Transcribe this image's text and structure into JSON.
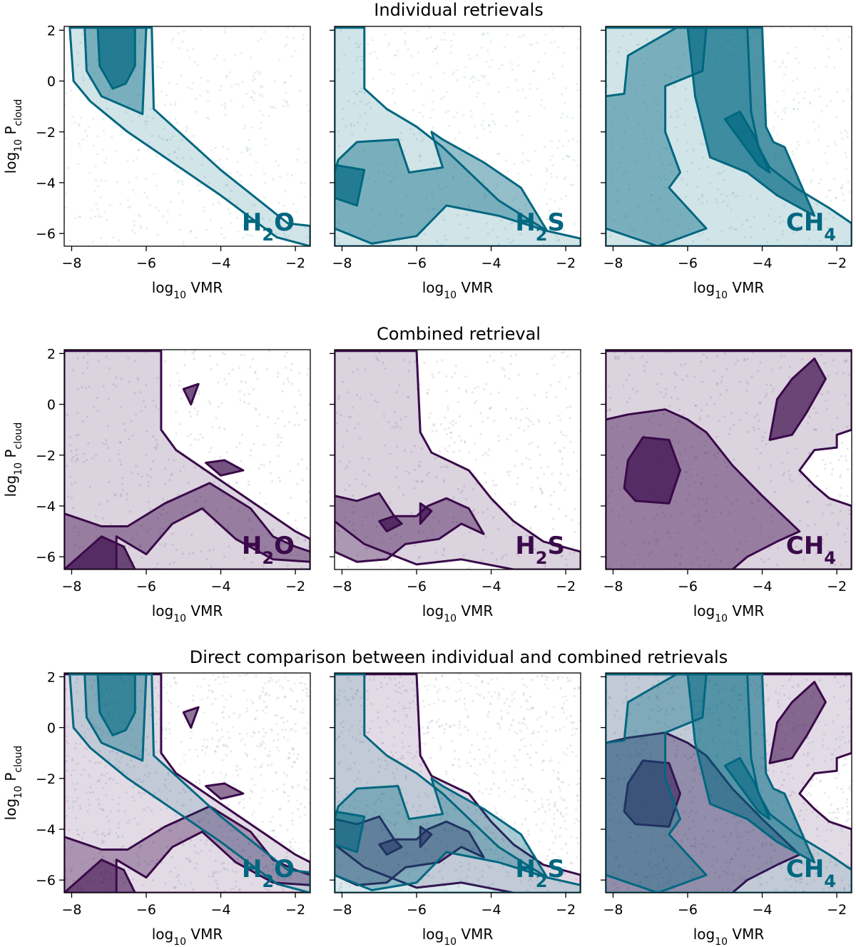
{
  "figure": {
    "row_titles": [
      "Individual retrievals",
      "Combined retrieval",
      "Direct comparison between individual and combined retrievals"
    ],
    "xlabel_main": "log",
    "xlabel_sub": "10",
    "xlabel_tail": " VMR",
    "ylabel_main": "log",
    "ylabel_sub": "10",
    "ylabel_tail": " P",
    "ylabel_tail_sub": "cloud",
    "colors": {
      "individual": "#006780",
      "combined": "#3a0a4a"
    }
  },
  "chart_data": {
    "type": "contour",
    "xlim": [
      -8.2,
      -1.6
    ],
    "ylim": [
      2.15,
      -6.5
    ],
    "x_ticks": [
      -8,
      -6,
      -4,
      -2
    ],
    "y_ticks": [
      -6,
      -4,
      -2,
      0,
      2
    ],
    "molecules": [
      {
        "main": "H",
        "sub": "2",
        "tail": "O"
      },
      {
        "main": "H",
        "sub": "2",
        "tail": "S"
      },
      {
        "main": "CH",
        "sub": "4",
        "tail": ""
      }
    ],
    "rows": [
      {
        "row": "individual",
        "palette": [
          "individual"
        ]
      },
      {
        "row": "combined",
        "palette": [
          "combined"
        ]
      },
      {
        "row": "comparison",
        "palette": [
          "combined",
          "individual"
        ]
      }
    ],
    "contours": {
      "individual": [
        [
          [
            [
              -8.05,
              2.1
            ],
            [
              -7.95,
              0.0
            ],
            [
              -7.5,
              -0.8
            ],
            [
              -6.5,
              -2.0
            ],
            [
              -4,
              -4.5
            ],
            [
              -2.5,
              -6.15
            ],
            [
              -1.6,
              -6.5
            ],
            [
              -1.6,
              -5.7
            ],
            [
              -2.2,
              -5.6
            ],
            [
              -4,
              -3.5
            ],
            [
              -5.8,
              -1.1
            ],
            [
              -5.85,
              2.1
            ]
          ],
          [
            [
              -7.65,
              2.1
            ],
            [
              -7.6,
              0.4
            ],
            [
              -7.2,
              -0.6
            ],
            [
              -6.1,
              -1.3
            ],
            [
              -6.0,
              2.1
            ]
          ],
          [
            [
              -7.3,
              2.1
            ],
            [
              -7.25,
              0.6
            ],
            [
              -6.9,
              -0.3
            ],
            [
              -6.55,
              -0.1
            ],
            [
              -6.3,
              0.6
            ],
            [
              -6.3,
              2.1
            ]
          ]
        ],
        [
          [
            [
              -8.2,
              -6.5
            ],
            [
              -1.6,
              -6.5
            ],
            [
              -1.6,
              -6.2
            ],
            [
              -2.5,
              -5.9
            ],
            [
              -3.8,
              -4.7
            ],
            [
              -5.3,
              -2.6
            ],
            [
              -6.0,
              -1.8
            ],
            [
              -6.8,
              -1.1
            ],
            [
              -7.4,
              -0.3
            ],
            [
              -7.4,
              2.1
            ],
            [
              -8.2,
              2.1
            ]
          ],
          [
            [
              -8.2,
              -5.8
            ],
            [
              -7.2,
              -6.4
            ],
            [
              -6.0,
              -6.1
            ],
            [
              -5.2,
              -4.9
            ],
            [
              -3.8,
              -5.3
            ],
            [
              -2.5,
              -5.9
            ],
            [
              -3.2,
              -4.2
            ],
            [
              -4.2,
              -3.2
            ],
            [
              -5.3,
              -2.3
            ],
            [
              -5.6,
              -2.0
            ],
            [
              -5.3,
              -3.4
            ],
            [
              -6.2,
              -3.6
            ],
            [
              -6.5,
              -2.3
            ],
            [
              -7.6,
              -2.4
            ],
            [
              -8.1,
              -3.1
            ],
            [
              -8.2,
              -3.6
            ]
          ],
          [
            [
              -8.2,
              -4.6
            ],
            [
              -7.6,
              -4.9
            ],
            [
              -7.4,
              -3.5
            ],
            [
              -8.2,
              -3.3
            ]
          ]
        ],
        [
          [
            [
              -8.2,
              -6.5
            ],
            [
              -1.6,
              -6.5
            ],
            [
              -1.6,
              -5.6
            ],
            [
              -2.2,
              -5.0
            ],
            [
              -3.1,
              -4.2
            ],
            [
              -3.8,
              -3.4
            ],
            [
              -4.1,
              -2.6
            ],
            [
              -4.3,
              -1.2
            ],
            [
              -4.4,
              2.1
            ],
            [
              -8.2,
              2.1
            ]
          ],
          [
            [
              -8.2,
              -5.8
            ],
            [
              -6.8,
              -6.5
            ],
            [
              -5.5,
              -5.8
            ],
            [
              -6.5,
              -4.2
            ],
            [
              -6.2,
              -3.6
            ],
            [
              -6.6,
              -2.0
            ],
            [
              -6.6,
              -0.2
            ],
            [
              -5.6,
              0.4
            ],
            [
              -5.5,
              2.1
            ],
            [
              -6.3,
              2.1
            ],
            [
              -7.6,
              1.0
            ],
            [
              -7.7,
              -0.5
            ],
            [
              -8.2,
              -0.6
            ]
          ],
          [
            [
              -6.0,
              2.1
            ],
            [
              -5.8,
              -0.6
            ],
            [
              -5.4,
              -3.0
            ],
            [
              -4.4,
              -3.6
            ],
            [
              -3.6,
              -4.5
            ],
            [
              -2.6,
              -5.3
            ],
            [
              -3.4,
              -2.6
            ],
            [
              -3.7,
              -2.4
            ],
            [
              -3.9,
              -1.8
            ],
            [
              -4.0,
              2.1
            ]
          ],
          [
            [
              -5.0,
              -1.5
            ],
            [
              -4.1,
              -3.3
            ],
            [
              -3.8,
              -3.6
            ],
            [
              -4.2,
              -2.2
            ],
            [
              -4.6,
              -1.2
            ]
          ]
        ]
      ],
      "combined": [
        [
          [
            [
              -8.2,
              -6.5
            ],
            [
              -1.6,
              -6.5
            ],
            [
              -1.6,
              -5.3
            ],
            [
              -2.0,
              -5.0
            ],
            [
              -3.0,
              -4.0
            ],
            [
              -4.2,
              -2.8
            ],
            [
              -5.2,
              -1.8
            ],
            [
              -5.6,
              -1.0
            ],
            [
              -5.6,
              2.1
            ],
            [
              -8.2,
              2.1
            ]
          ],
          [
            [
              -8.2,
              -4.3
            ],
            [
              -7.2,
              -4.8
            ],
            [
              -6.5,
              -4.8
            ],
            [
              -5.5,
              -3.9
            ],
            [
              -4.3,
              -3.1
            ],
            [
              -3.2,
              -4.1
            ],
            [
              -2.6,
              -5.2
            ],
            [
              -2.0,
              -5.6
            ],
            [
              -1.6,
              -5.8
            ],
            [
              -1.6,
              -6.2
            ],
            [
              -2.6,
              -6.1
            ],
            [
              -3.6,
              -5.3
            ],
            [
              -4.5,
              -4.1
            ],
            [
              -5.3,
              -4.7
            ],
            [
              -6.0,
              -5.9
            ],
            [
              -6.8,
              -5.2
            ],
            [
              -6.8,
              -6.5
            ],
            [
              -8.2,
              -6.5
            ]
          ],
          [
            [
              -8.2,
              -6.5
            ],
            [
              -7.2,
              -5.2
            ],
            [
              -6.6,
              -5.6
            ],
            [
              -6.3,
              -6.5
            ]
          ],
          [
            [
              -4.4,
              -2.3
            ],
            [
              -3.9,
              -2.2
            ],
            [
              -3.4,
              -2.6
            ],
            [
              -4.0,
              -2.8
            ]
          ],
          [
            [
              -4.8,
              0.0
            ],
            [
              -4.6,
              0.8
            ],
            [
              -5.0,
              0.6
            ]
          ]
        ],
        [
          [
            [
              -8.2,
              -4.6
            ],
            [
              -7.4,
              -5.5
            ],
            [
              -6.0,
              -6.3
            ],
            [
              -4.8,
              -6.1
            ],
            [
              -3.4,
              -6.5
            ],
            [
              -1.6,
              -6.5
            ],
            [
              -1.6,
              -5.8
            ],
            [
              -2.6,
              -5.4
            ],
            [
              -3.4,
              -4.6
            ],
            [
              -4.0,
              -3.7
            ],
            [
              -4.6,
              -2.6
            ],
            [
              -5.6,
              -1.9
            ],
            [
              -5.9,
              -1.1
            ],
            [
              -6.0,
              2.1
            ],
            [
              -8.2,
              2.1
            ]
          ],
          [
            [
              -8.2,
              -5.8
            ],
            [
              -7.6,
              -6.2
            ],
            [
              -6.8,
              -6.1
            ],
            [
              -6.3,
              -5.5
            ],
            [
              -5.4,
              -5.3
            ],
            [
              -4.8,
              -4.7
            ],
            [
              -4.2,
              -5.1
            ],
            [
              -4.6,
              -4.1
            ],
            [
              -5.2,
              -3.7
            ],
            [
              -5.7,
              -4.0
            ],
            [
              -6.0,
              -4.4
            ],
            [
              -6.6,
              -4.4
            ],
            [
              -7.0,
              -3.5
            ],
            [
              -7.6,
              -3.8
            ],
            [
              -8.2,
              -3.6
            ]
          ],
          [
            [
              -6.8,
              -5.0
            ],
            [
              -6.4,
              -4.7
            ],
            [
              -6.6,
              -4.4
            ],
            [
              -7.0,
              -4.6
            ]
          ],
          [
            [
              -5.9,
              -4.7
            ],
            [
              -5.6,
              -4.2
            ],
            [
              -5.9,
              -3.9
            ]
          ]
        ],
        [
          [
            [
              -8.2,
              -6.5
            ],
            [
              -1.6,
              -6.5
            ],
            [
              -1.6,
              -4.0
            ],
            [
              -2.2,
              -3.7
            ],
            [
              -2.6,
              -3.2
            ],
            [
              -3.0,
              -2.6
            ],
            [
              -2.6,
              -1.8
            ],
            [
              -2.0,
              -1.7
            ],
            [
              -2.0,
              -1.2
            ],
            [
              -1.6,
              -1.0
            ],
            [
              -1.6,
              2.1
            ],
            [
              -8.2,
              2.1
            ]
          ],
          [
            [
              -8.2,
              -6.5
            ],
            [
              -4.8,
              -6.5
            ],
            [
              -4.4,
              -6.0
            ],
            [
              -3.6,
              -5.4
            ],
            [
              -3.0,
              -5.0
            ],
            [
              -4.0,
              -3.6
            ],
            [
              -4.8,
              -2.4
            ],
            [
              -5.5,
              -1.1
            ],
            [
              -6.0,
              -0.6
            ],
            [
              -6.6,
              -0.2
            ],
            [
              -7.6,
              -0.4
            ],
            [
              -8.2,
              -0.6
            ]
          ],
          [
            [
              -7.4,
              -3.8
            ],
            [
              -6.5,
              -3.9
            ],
            [
              -6.2,
              -2.6
            ],
            [
              -6.5,
              -1.4
            ],
            [
              -7.2,
              -1.3
            ],
            [
              -7.6,
              -2.2
            ],
            [
              -7.7,
              -3.3
            ]
          ],
          [
            [
              -3.8,
              -1.4
            ],
            [
              -3.2,
              -1.2
            ],
            [
              -2.8,
              -0.3
            ],
            [
              -2.3,
              1.0
            ],
            [
              -2.6,
              1.8
            ],
            [
              -3.2,
              1.0
            ],
            [
              -3.6,
              0.2
            ]
          ]
        ]
      ]
    }
  }
}
